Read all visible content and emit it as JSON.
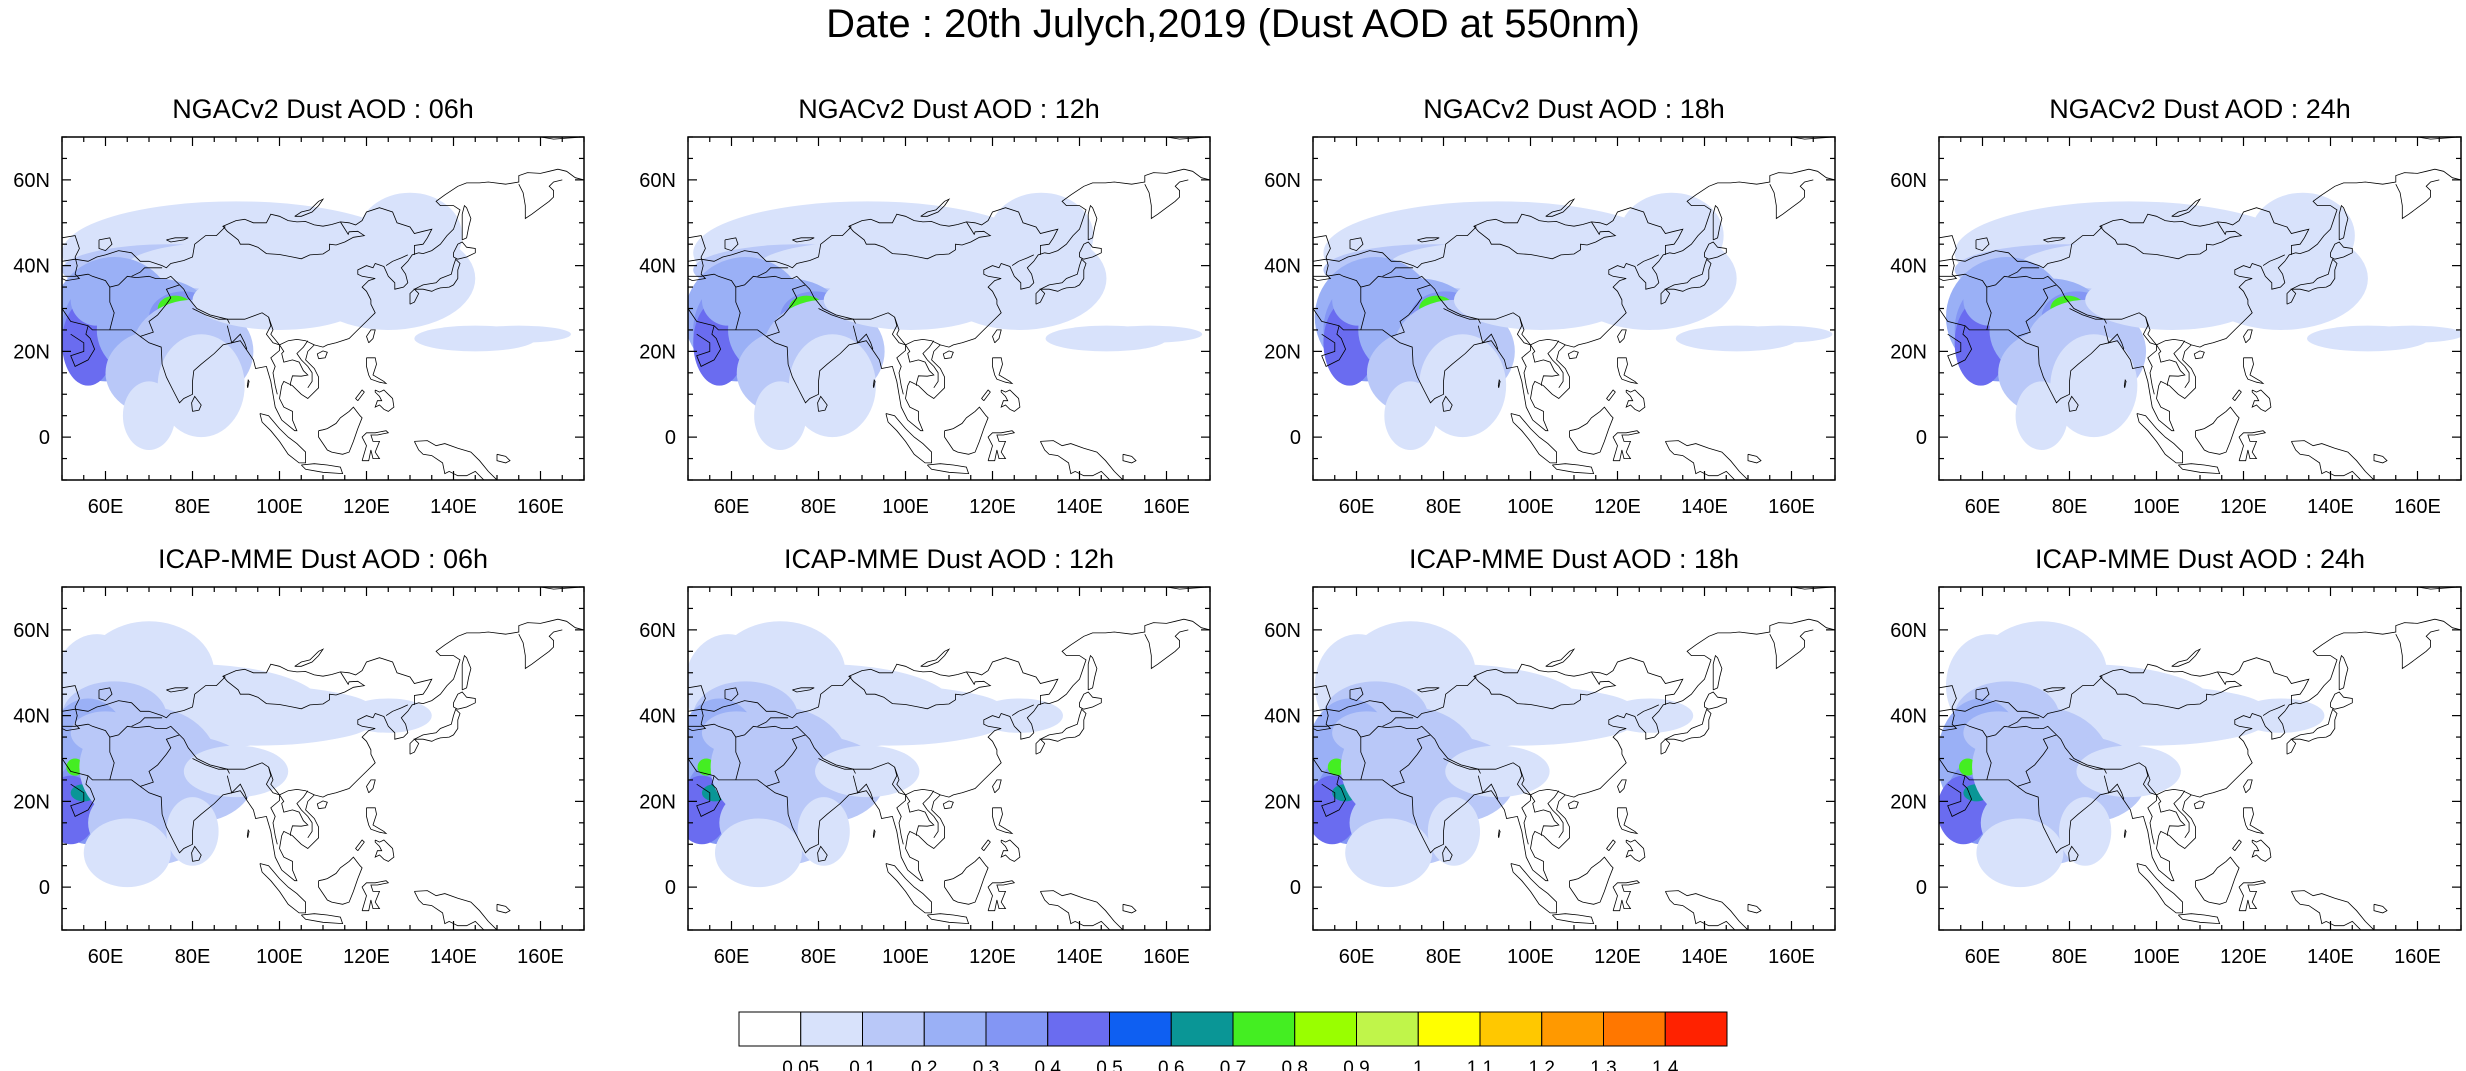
{
  "title": "Date : 20th Julych,2019 (Dust AOD at 550nm)",
  "lat_ticks": [
    "60N",
    "40N",
    "20N",
    "0"
  ],
  "lon_ticks": [
    "60E",
    "80E",
    "100E",
    "120E",
    "140E",
    "160E"
  ],
  "lon_values": [
    60,
    80,
    100,
    120,
    140,
    160
  ],
  "lat_values": [
    60,
    40,
    20,
    0
  ],
  "lon_range": [
    50,
    170
  ],
  "lat_range": [
    -10,
    70
  ],
  "panels": [
    {
      "title": "NGACv2 Dust AOD : 06h",
      "model": "NGACv2",
      "hour": "06h"
    },
    {
      "title": "NGACv2 Dust AOD : 12h",
      "model": "NGACv2",
      "hour": "12h"
    },
    {
      "title": "NGACv2 Dust AOD : 18h",
      "model": "NGACv2",
      "hour": "18h"
    },
    {
      "title": "NGACv2 Dust AOD : 24h",
      "model": "NGACv2",
      "hour": "24h"
    },
    {
      "title": "ICAP-MME Dust AOD : 06h",
      "model": "ICAP-MME",
      "hour": "06h"
    },
    {
      "title": "ICAP-MME Dust AOD : 12h",
      "model": "ICAP-MME",
      "hour": "12h"
    },
    {
      "title": "ICAP-MME Dust AOD : 18h",
      "model": "ICAP-MME",
      "hour": "18h"
    },
    {
      "title": "ICAP-MME Dust AOD : 24h",
      "model": "ICAP-MME",
      "hour": "24h"
    }
  ],
  "colorbar": {
    "labels": [
      "0.05",
      "0.1",
      "0.2",
      "0.3",
      "0.4",
      "0.5",
      "0.6",
      "0.7",
      "0.8",
      "0.9",
      "1",
      "1.1",
      "1.2",
      "1.3",
      "1.4"
    ],
    "colors": [
      "#ffffff",
      "#d8e2fb",
      "#b9c8f8",
      "#9ab0f6",
      "#8396f4",
      "#6a6cf0",
      "#0e5ff2",
      "#0a9696",
      "#44ee22",
      "#99ff00",
      "#c0f54a",
      "#ffff00",
      "#ffc800",
      "#ff9900",
      "#ff7700",
      "#ff2200"
    ]
  }
}
